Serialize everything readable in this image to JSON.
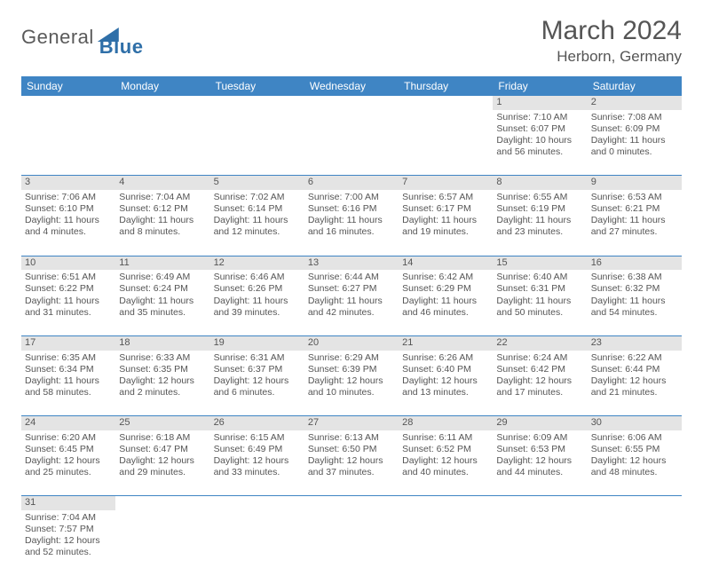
{
  "logo": {
    "text1": "General",
    "text2": "Blue"
  },
  "title": "March 2024",
  "location": "Herborn, Germany",
  "colors": {
    "header_bg": "#3f85c4",
    "header_fg": "#ffffff",
    "daynum_bg": "#e4e4e4",
    "border": "#3f85c4",
    "text": "#555555",
    "logo_blue": "#2f6fa8"
  },
  "weekdays": [
    "Sunday",
    "Monday",
    "Tuesday",
    "Wednesday",
    "Thursday",
    "Friday",
    "Saturday"
  ],
  "weeks": [
    {
      "nums": [
        "",
        "",
        "",
        "",
        "",
        "1",
        "2"
      ],
      "cells": [
        null,
        null,
        null,
        null,
        null,
        {
          "sunrise": "Sunrise: 7:10 AM",
          "sunset": "Sunset: 6:07 PM",
          "daylight": "Daylight: 10 hours and 56 minutes."
        },
        {
          "sunrise": "Sunrise: 7:08 AM",
          "sunset": "Sunset: 6:09 PM",
          "daylight": "Daylight: 11 hours and 0 minutes."
        }
      ]
    },
    {
      "nums": [
        "3",
        "4",
        "5",
        "6",
        "7",
        "8",
        "9"
      ],
      "cells": [
        {
          "sunrise": "Sunrise: 7:06 AM",
          "sunset": "Sunset: 6:10 PM",
          "daylight": "Daylight: 11 hours and 4 minutes."
        },
        {
          "sunrise": "Sunrise: 7:04 AM",
          "sunset": "Sunset: 6:12 PM",
          "daylight": "Daylight: 11 hours and 8 minutes."
        },
        {
          "sunrise": "Sunrise: 7:02 AM",
          "sunset": "Sunset: 6:14 PM",
          "daylight": "Daylight: 11 hours and 12 minutes."
        },
        {
          "sunrise": "Sunrise: 7:00 AM",
          "sunset": "Sunset: 6:16 PM",
          "daylight": "Daylight: 11 hours and 16 minutes."
        },
        {
          "sunrise": "Sunrise: 6:57 AM",
          "sunset": "Sunset: 6:17 PM",
          "daylight": "Daylight: 11 hours and 19 minutes."
        },
        {
          "sunrise": "Sunrise: 6:55 AM",
          "sunset": "Sunset: 6:19 PM",
          "daylight": "Daylight: 11 hours and 23 minutes."
        },
        {
          "sunrise": "Sunrise: 6:53 AM",
          "sunset": "Sunset: 6:21 PM",
          "daylight": "Daylight: 11 hours and 27 minutes."
        }
      ]
    },
    {
      "nums": [
        "10",
        "11",
        "12",
        "13",
        "14",
        "15",
        "16"
      ],
      "cells": [
        {
          "sunrise": "Sunrise: 6:51 AM",
          "sunset": "Sunset: 6:22 PM",
          "daylight": "Daylight: 11 hours and 31 minutes."
        },
        {
          "sunrise": "Sunrise: 6:49 AM",
          "sunset": "Sunset: 6:24 PM",
          "daylight": "Daylight: 11 hours and 35 minutes."
        },
        {
          "sunrise": "Sunrise: 6:46 AM",
          "sunset": "Sunset: 6:26 PM",
          "daylight": "Daylight: 11 hours and 39 minutes."
        },
        {
          "sunrise": "Sunrise: 6:44 AM",
          "sunset": "Sunset: 6:27 PM",
          "daylight": "Daylight: 11 hours and 42 minutes."
        },
        {
          "sunrise": "Sunrise: 6:42 AM",
          "sunset": "Sunset: 6:29 PM",
          "daylight": "Daylight: 11 hours and 46 minutes."
        },
        {
          "sunrise": "Sunrise: 6:40 AM",
          "sunset": "Sunset: 6:31 PM",
          "daylight": "Daylight: 11 hours and 50 minutes."
        },
        {
          "sunrise": "Sunrise: 6:38 AM",
          "sunset": "Sunset: 6:32 PM",
          "daylight": "Daylight: 11 hours and 54 minutes."
        }
      ]
    },
    {
      "nums": [
        "17",
        "18",
        "19",
        "20",
        "21",
        "22",
        "23"
      ],
      "cells": [
        {
          "sunrise": "Sunrise: 6:35 AM",
          "sunset": "Sunset: 6:34 PM",
          "daylight": "Daylight: 11 hours and 58 minutes."
        },
        {
          "sunrise": "Sunrise: 6:33 AM",
          "sunset": "Sunset: 6:35 PM",
          "daylight": "Daylight: 12 hours and 2 minutes."
        },
        {
          "sunrise": "Sunrise: 6:31 AM",
          "sunset": "Sunset: 6:37 PM",
          "daylight": "Daylight: 12 hours and 6 minutes."
        },
        {
          "sunrise": "Sunrise: 6:29 AM",
          "sunset": "Sunset: 6:39 PM",
          "daylight": "Daylight: 12 hours and 10 minutes."
        },
        {
          "sunrise": "Sunrise: 6:26 AM",
          "sunset": "Sunset: 6:40 PM",
          "daylight": "Daylight: 12 hours and 13 minutes."
        },
        {
          "sunrise": "Sunrise: 6:24 AM",
          "sunset": "Sunset: 6:42 PM",
          "daylight": "Daylight: 12 hours and 17 minutes."
        },
        {
          "sunrise": "Sunrise: 6:22 AM",
          "sunset": "Sunset: 6:44 PM",
          "daylight": "Daylight: 12 hours and 21 minutes."
        }
      ]
    },
    {
      "nums": [
        "24",
        "25",
        "26",
        "27",
        "28",
        "29",
        "30"
      ],
      "cells": [
        {
          "sunrise": "Sunrise: 6:20 AM",
          "sunset": "Sunset: 6:45 PM",
          "daylight": "Daylight: 12 hours and 25 minutes."
        },
        {
          "sunrise": "Sunrise: 6:18 AM",
          "sunset": "Sunset: 6:47 PM",
          "daylight": "Daylight: 12 hours and 29 minutes."
        },
        {
          "sunrise": "Sunrise: 6:15 AM",
          "sunset": "Sunset: 6:49 PM",
          "daylight": "Daylight: 12 hours and 33 minutes."
        },
        {
          "sunrise": "Sunrise: 6:13 AM",
          "sunset": "Sunset: 6:50 PM",
          "daylight": "Daylight: 12 hours and 37 minutes."
        },
        {
          "sunrise": "Sunrise: 6:11 AM",
          "sunset": "Sunset: 6:52 PM",
          "daylight": "Daylight: 12 hours and 40 minutes."
        },
        {
          "sunrise": "Sunrise: 6:09 AM",
          "sunset": "Sunset: 6:53 PM",
          "daylight": "Daylight: 12 hours and 44 minutes."
        },
        {
          "sunrise": "Sunrise: 6:06 AM",
          "sunset": "Sunset: 6:55 PM",
          "daylight": "Daylight: 12 hours and 48 minutes."
        }
      ]
    },
    {
      "nums": [
        "31",
        "",
        "",
        "",
        "",
        "",
        ""
      ],
      "cells": [
        {
          "sunrise": "Sunrise: 7:04 AM",
          "sunset": "Sunset: 7:57 PM",
          "daylight": "Daylight: 12 hours and 52 minutes."
        },
        null,
        null,
        null,
        null,
        null,
        null
      ]
    }
  ]
}
